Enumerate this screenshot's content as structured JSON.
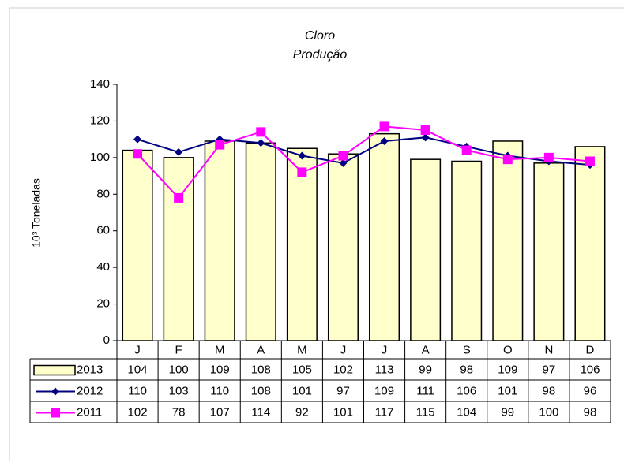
{
  "chart_data": {
    "type": "bar",
    "title": "Cloro",
    "subtitle": "Produção",
    "y_label": "10³ Toneladas",
    "categories": [
      "J",
      "F",
      "M",
      "A",
      "M",
      "J",
      "J",
      "A",
      "S",
      "O",
      "N",
      "D"
    ],
    "series": [
      {
        "name": "2013",
        "type": "bar",
        "color": "#ffffcc",
        "values": [
          104,
          100,
          109,
          108,
          105,
          102,
          113,
          99,
          98,
          109,
          97,
          106
        ]
      },
      {
        "name": "2012",
        "type": "line",
        "marker": "diamond",
        "color": "#000080",
        "values": [
          110,
          103,
          110,
          108,
          101,
          97,
          109,
          111,
          106,
          101,
          98,
          96
        ]
      },
      {
        "name": "2011",
        "type": "line",
        "marker": "square",
        "color": "#ff00ff",
        "values": [
          102,
          78,
          107,
          114,
          92,
          101,
          117,
          115,
          104,
          99,
          100,
          98
        ]
      }
    ],
    "ylim": [
      0,
      140
    ],
    "yticks": [
      0,
      20,
      40,
      60,
      80,
      100,
      120,
      140
    ],
    "grid": false,
    "data_table": true
  }
}
